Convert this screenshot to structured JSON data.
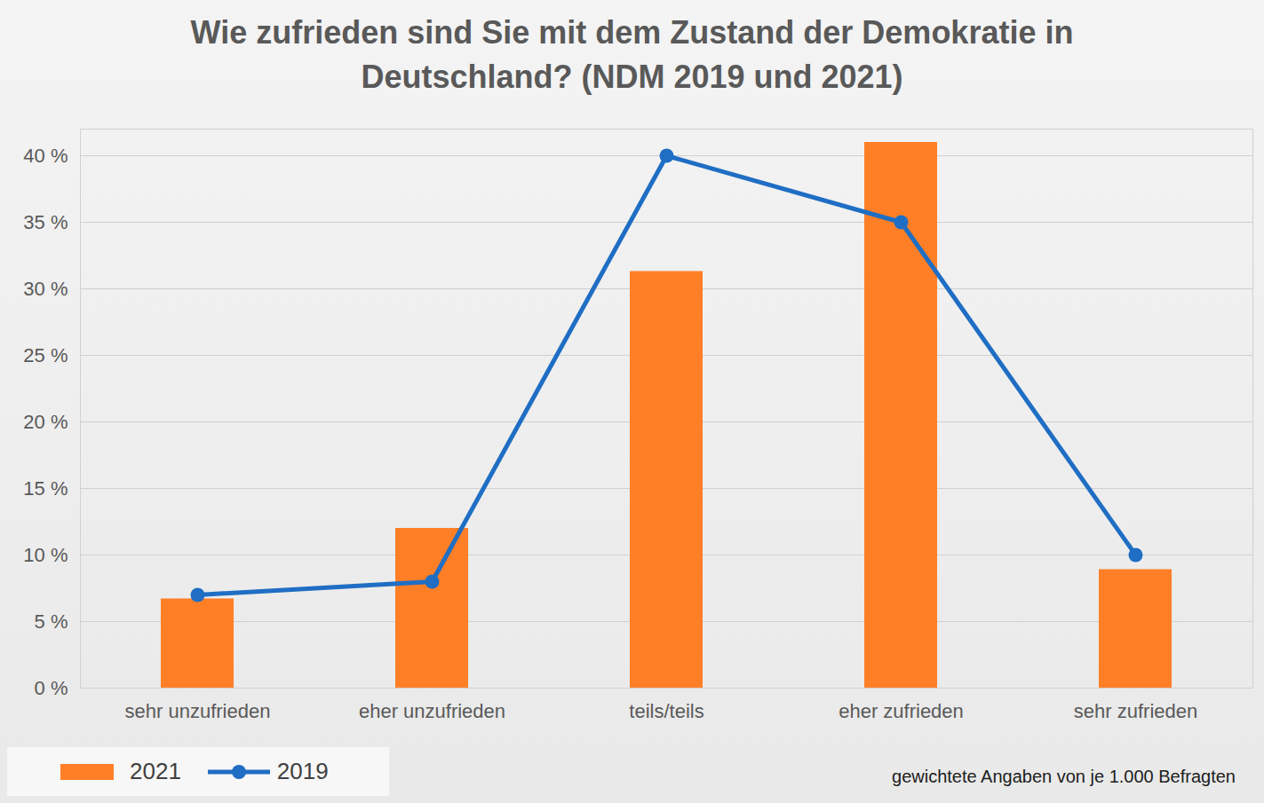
{
  "chart_data": {
    "type": "bar",
    "title": "Wie zufrieden sind Sie mit dem Zustand der Demokratie in Deutschland? (NDM 2019 und 2021)",
    "annotations": [
      "gewichtete Angaben von je 1.000 Befragten"
    ],
    "categories": [
      "sehr unzufrieden",
      "eher unzufrieden",
      "teils/teils",
      "eher zufrieden",
      "sehr zufrieden"
    ],
    "series": [
      {
        "name": "2021",
        "type": "bar",
        "color": "#ff7f27",
        "values": [
          6.7,
          12,
          31.3,
          41,
          8.9
        ]
      },
      {
        "name": "2019",
        "type": "line",
        "color": "#1f6ec4",
        "marker": "circle",
        "values": [
          7,
          8,
          40,
          35,
          10
        ]
      }
    ],
    "ylim": [
      0,
      42
    ],
    "yticks": [
      {
        "value": 0,
        "label": "0 %"
      },
      {
        "value": 5,
        "label": "5 %"
      },
      {
        "value": 10,
        "label": "10 %"
      },
      {
        "value": 15,
        "label": "15 %"
      },
      {
        "value": 20,
        "label": "20 %"
      },
      {
        "value": 25,
        "label": "25 %"
      },
      {
        "value": 30,
        "label": "30 %"
      },
      {
        "value": 35,
        "label": "35 %"
      },
      {
        "value": 40,
        "label": "40 %"
      }
    ],
    "grid": true,
    "legend": "bottom"
  }
}
